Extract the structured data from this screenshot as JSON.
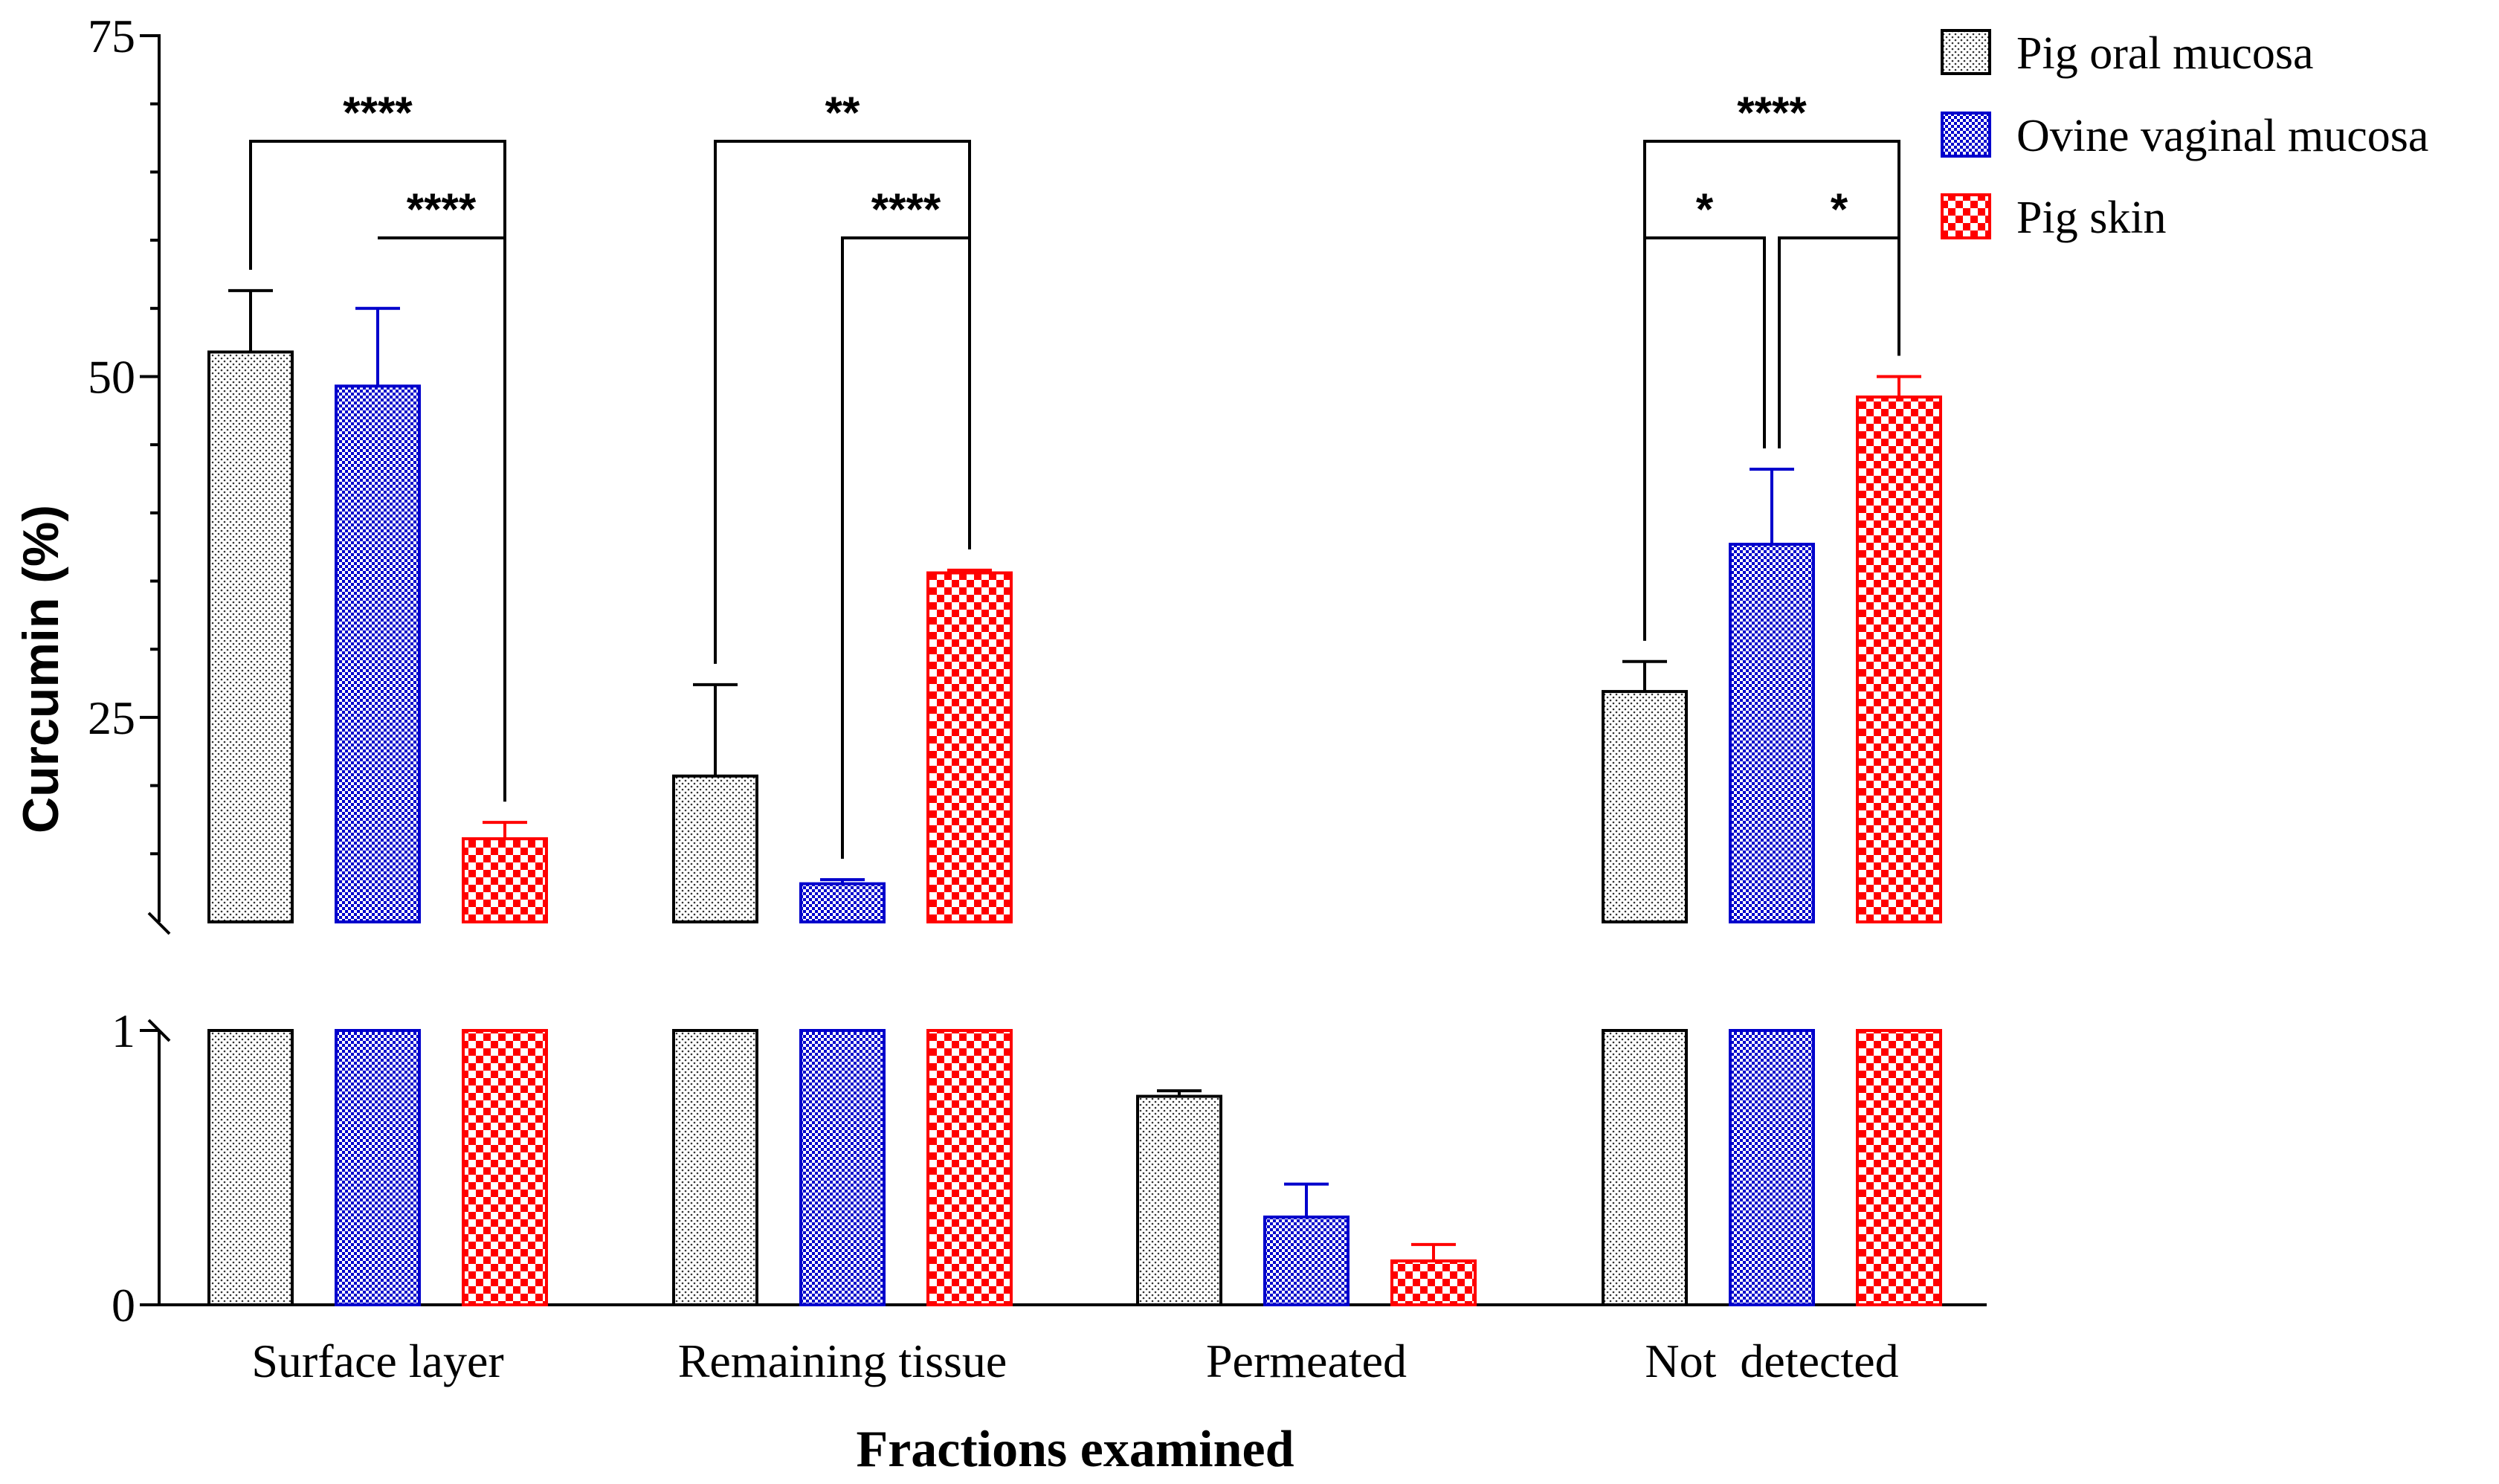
{
  "chart_data": {
    "type": "bar",
    "ylabel": "Curcumin (%)",
    "xlabel": "Fractions examined",
    "categories": [
      "Surface layer",
      "Remaining tissue",
      "Permeated",
      "Not  detected"
    ],
    "series": [
      {
        "name": "Pig oral mucosa",
        "color": "#000000",
        "pattern": "dots",
        "values": [
          51.8,
          20.7,
          0.76,
          26.9
        ],
        "errors": [
          4.5,
          6.7,
          0.02,
          2.2
        ]
      },
      {
        "name": "Ovine vaginal mucosa",
        "color": "#0000cc",
        "pattern": "fine-check",
        "values": [
          49.3,
          12.8,
          0.32,
          37.7
        ],
        "errors": [
          5.7,
          0.3,
          0.12,
          5.5
        ]
      },
      {
        "name": "Pig skin",
        "color": "#ff0000",
        "pattern": "checkerboard",
        "values": [
          16.1,
          35.6,
          0.16,
          48.5
        ],
        "errors": [
          1.2,
          0.2,
          0.06,
          1.5
        ]
      }
    ],
    "axis": {
      "broken": true,
      "lower_segment": {
        "range": [
          0,
          1
        ],
        "ticks": [
          "0",
          "1"
        ]
      },
      "upper_segment": {
        "range": [
          10,
          75
        ],
        "ticks": [
          "25",
          "50",
          "75"
        ],
        "minor_step": 5
      }
    },
    "significance": [
      {
        "category": 0,
        "from_series": 0,
        "to_series": 2,
        "label": "****"
      },
      {
        "category": 0,
        "from_series": 1,
        "to_series": 2,
        "label": "****"
      },
      {
        "category": 1,
        "from_series": 0,
        "to_series": 2,
        "label": "**"
      },
      {
        "category": 1,
        "from_series": 1,
        "to_series": 2,
        "label": "****"
      },
      {
        "category": 3,
        "from_series": 0,
        "to_series": 2,
        "label": "****"
      },
      {
        "category": 3,
        "from_series": 0,
        "to_series": 1,
        "label": "*"
      },
      {
        "category": 3,
        "from_series": 1,
        "to_series": 2,
        "label": "*"
      }
    ],
    "legend_position": "top-right",
    "grid": false
  }
}
